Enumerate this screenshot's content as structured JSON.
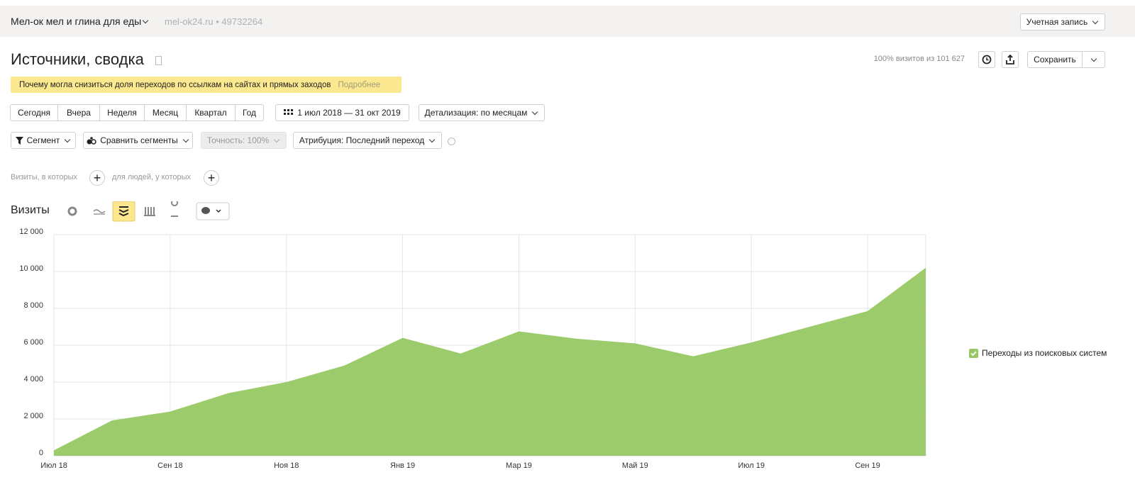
{
  "header": {
    "site_name": "Мел-ок мел и глина для еды",
    "site_meta": "mel-ok24.ru • 49732264",
    "account": "Учетная запись"
  },
  "report": {
    "title": "Источники, сводка",
    "visits_share": "100% визитов из 101 627",
    "save": "Сохранить"
  },
  "notice": {
    "text": "Почему могла снизиться доля переходов по ссылкам на сайтах и прямых заходов",
    "link": "Подробнее"
  },
  "periods": [
    "Сегодня",
    "Вчера",
    "Неделя",
    "Месяц",
    "Квартал",
    "Год"
  ],
  "date_range": "1 июл 2018 — 31 окт 2019",
  "detail": "Детализация: по месяцам",
  "filters": {
    "segment": "Сегмент",
    "compare": "Сравнить сегменты",
    "accuracy": "Точность: 100%",
    "attribution": "Атрибуция: Последний переход"
  },
  "conditions": {
    "visits": "Визиты, в которых",
    "people": "для людей, у которых"
  },
  "chart_data": {
    "type": "area",
    "title": "Визиты",
    "categories": [
      "Июл 18",
      null,
      "Сен 18",
      null,
      "Ноя 18",
      null,
      "Янв 19",
      null,
      "Мар 19",
      null,
      "Май 19",
      null,
      "Июл 19",
      null,
      "Сен 19",
      null
    ],
    "series": [
      {
        "name": "Переходы из поисковых систем",
        "color": "#97c864",
        "values": [
          300,
          1920,
          2400,
          3400,
          4000,
          4900,
          6400,
          5550,
          6750,
          6350,
          6100,
          5400,
          6150,
          7000,
          7850,
          10200
        ]
      }
    ],
    "ylim": [
      0,
      12000
    ],
    "yticks": [
      0,
      {
        "value": 2000,
        "label": "2 000"
      },
      {
        "value": 4000,
        "label": "4 000"
      },
      {
        "value": 6000,
        "label": "6 000"
      },
      {
        "value": 8000,
        "label": "8 000"
      },
      {
        "value": 10000,
        "label": "10 000"
      },
      {
        "value": 12000,
        "label": "12 000"
      }
    ],
    "grid": true
  }
}
